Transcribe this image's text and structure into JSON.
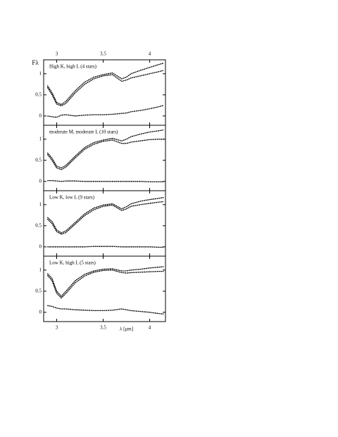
{
  "chart_data": [
    {
      "type": "line",
      "ylabel": "Fλ",
      "label": "High K, high L (4 stars)",
      "x": [
        2.9,
        2.95,
        3.0,
        3.05,
        3.1,
        3.2,
        3.3,
        3.4,
        3.5,
        3.6,
        3.7,
        3.75,
        3.8,
        3.9,
        4.0,
        4.1,
        4.15
      ],
      "series": [
        {
          "color": "#000000",
          "values": [
            0.72,
            0.55,
            0.32,
            0.27,
            0.35,
            0.6,
            0.8,
            0.92,
            0.98,
            1.02,
            0.88,
            0.92,
            1.0,
            1.08,
            1.15,
            1.22,
            1.25
          ]
        },
        {
          "color": "#000000",
          "values": [
            0.68,
            0.5,
            0.28,
            0.24,
            0.3,
            0.55,
            0.75,
            0.88,
            0.95,
            0.98,
            0.82,
            0.85,
            0.9,
            0.95,
            1.0,
            1.05,
            1.08
          ]
        },
        {
          "color": "#000000",
          "values": [
            0.0,
            -0.02,
            -0.03,
            0.02,
            0.03,
            0.0,
            0.02,
            0.03,
            0.03,
            0.04,
            0.06,
            0.07,
            0.1,
            0.13,
            0.17,
            0.22,
            0.25
          ]
        }
      ],
      "xlim": [
        2.86,
        4.17
      ],
      "ylim": [
        -0.22,
        1.33
      ],
      "xticks": [
        3,
        3.5,
        4
      ],
      "yticks": [
        0,
        0.5,
        1
      ]
    },
    {
      "type": "line",
      "label": "moderate M, moderate L (10 stars)",
      "x": [
        2.9,
        2.95,
        3.0,
        3.05,
        3.1,
        3.2,
        3.3,
        3.4,
        3.5,
        3.6,
        3.7,
        3.75,
        3.8,
        3.9,
        4.0,
        4.1,
        4.15
      ],
      "series": [
        {
          "color": "#000000",
          "values": [
            0.68,
            0.55,
            0.36,
            0.32,
            0.38,
            0.6,
            0.8,
            0.92,
            0.98,
            1.02,
            0.96,
            1.0,
            1.06,
            1.12,
            1.17,
            1.2,
            1.22
          ]
        },
        {
          "color": "#000000",
          "values": [
            0.64,
            0.5,
            0.32,
            0.28,
            0.34,
            0.56,
            0.76,
            0.88,
            0.95,
            0.98,
            0.9,
            0.9,
            0.93,
            0.96,
            0.99,
            1.0,
            1.0
          ]
        },
        {
          "color": "#000000",
          "values": [
            0.02,
            0.02,
            0.01,
            0.0,
            0.01,
            0.01,
            0.0,
            0.0,
            0.0,
            0.0,
            0.0,
            0.0,
            0.0,
            0.0,
            -0.01,
            -0.01,
            -0.01
          ]
        }
      ],
      "xlim": [
        2.86,
        4.17
      ],
      "ylim": [
        -0.22,
        1.33
      ],
      "xticks": [
        3,
        3.5,
        4
      ],
      "yticks": [
        0,
        0.5,
        1
      ]
    },
    {
      "type": "line",
      "label": "Low K, low L (9 stars)",
      "x": [
        2.9,
        2.95,
        3.0,
        3.05,
        3.1,
        3.2,
        3.3,
        3.4,
        3.5,
        3.6,
        3.7,
        3.75,
        3.8,
        3.9,
        4.0,
        4.1,
        4.15
      ],
      "series": [
        {
          "color": "#000000",
          "values": [
            0.7,
            0.6,
            0.4,
            0.33,
            0.38,
            0.58,
            0.78,
            0.92,
            0.99,
            1.02,
            0.9,
            0.95,
            1.02,
            1.08,
            1.12,
            1.15,
            1.17
          ]
        },
        {
          "color": "#000000",
          "values": [
            0.66,
            0.55,
            0.36,
            0.3,
            0.34,
            0.54,
            0.74,
            0.88,
            0.96,
            0.99,
            0.86,
            0.9,
            0.96,
            1.0,
            1.03,
            1.06,
            1.07
          ]
        },
        {
          "color": "#000000",
          "values": [
            0.0,
            0.0,
            0.0,
            0.0,
            0.0,
            0.0,
            0.0,
            0.01,
            0.01,
            0.01,
            0.0,
            0.0,
            0.0,
            0.0,
            0.0,
            -0.01,
            -0.01
          ]
        }
      ],
      "xlim": [
        2.86,
        4.17
      ],
      "ylim": [
        -0.22,
        1.33
      ],
      "xticks": [
        3,
        3.5,
        4
      ],
      "yticks": [
        0,
        0.5,
        1
      ]
    },
    {
      "type": "line",
      "label": "Low K, high L (5 stars)",
      "xlabel": "λ [μm]",
      "x": [
        2.9,
        2.95,
        3.0,
        3.05,
        3.1,
        3.2,
        3.3,
        3.4,
        3.5,
        3.6,
        3.7,
        3.75,
        3.8,
        3.9,
        4.0,
        4.1,
        4.15
      ],
      "series": [
        {
          "color": "#000000",
          "values": [
            0.92,
            0.8,
            0.5,
            0.38,
            0.5,
            0.75,
            0.9,
            0.98,
            1.02,
            1.03,
            0.98,
            0.98,
            1.0,
            1.02,
            1.05,
            1.07,
            1.08
          ]
        },
        {
          "color": "#000000",
          "values": [
            0.88,
            0.75,
            0.45,
            0.34,
            0.45,
            0.7,
            0.86,
            0.95,
            0.99,
            1.0,
            0.94,
            0.93,
            0.94,
            0.95,
            0.96,
            0.97,
            0.97
          ]
        },
        {
          "color": "#000000",
          "values": [
            0.16,
            0.14,
            0.1,
            0.08,
            0.08,
            0.06,
            0.05,
            0.04,
            0.04,
            0.05,
            0.08,
            0.06,
            0.04,
            0.02,
            0.0,
            -0.03,
            -0.04
          ]
        }
      ],
      "xlim": [
        2.86,
        4.17
      ],
      "ylim": [
        -0.22,
        1.33
      ],
      "xticks": [
        3,
        3.5,
        4
      ],
      "yticks": [
        0,
        0.5,
        1
      ]
    }
  ]
}
